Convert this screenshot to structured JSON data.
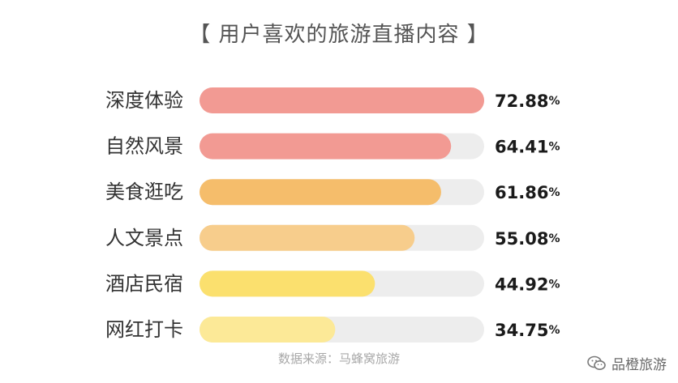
{
  "title": "【 用户喜欢的旅游直播内容 】",
  "source": "数据来源：马蜂窝旅游",
  "watermark": {
    "icon": "wechat-icon",
    "text": "品橙旅游"
  },
  "chart_data": {
    "type": "bar",
    "orientation": "horizontal",
    "title": "【 用户喜欢的旅游直播内容 】",
    "categories": [
      "深度体验",
      "自然风景",
      "美食逛吃",
      "人文景点",
      "酒店民宿",
      "网红打卡"
    ],
    "values": [
      72.88,
      64.41,
      61.86,
      55.08,
      44.92,
      34.75
    ],
    "labels": [
      "72.88%",
      "64.41%",
      "61.86%",
      "55.08%",
      "44.92%",
      "34.75%"
    ],
    "xlim": [
      0,
      72.88
    ],
    "track_color": "#ededed",
    "colors": [
      "#f29a93",
      "#f29a93",
      "#f5bd6b",
      "#f7cd8c",
      "#fbe06e",
      "#fce997"
    ],
    "grid": false,
    "legend": "none"
  }
}
